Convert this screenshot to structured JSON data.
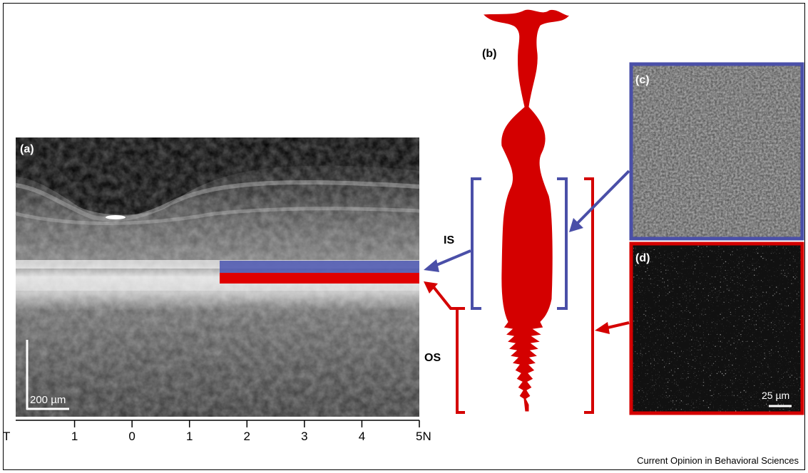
{
  "panels": {
    "a": {
      "label": "(a)",
      "scale_bar": "200 µm",
      "axis_ticks": [
        "T",
        "1",
        "0",
        "1",
        "2",
        "3",
        "4",
        "5N"
      ]
    },
    "b": {
      "label": "(b)",
      "is_label": "IS",
      "os_label": "OS"
    },
    "c": {
      "label": "(c)"
    },
    "d": {
      "label": "(d)",
      "scale_bar": "25 µm"
    }
  },
  "footer": {
    "source": "Current Opinion in Behavioral Sciences"
  }
}
